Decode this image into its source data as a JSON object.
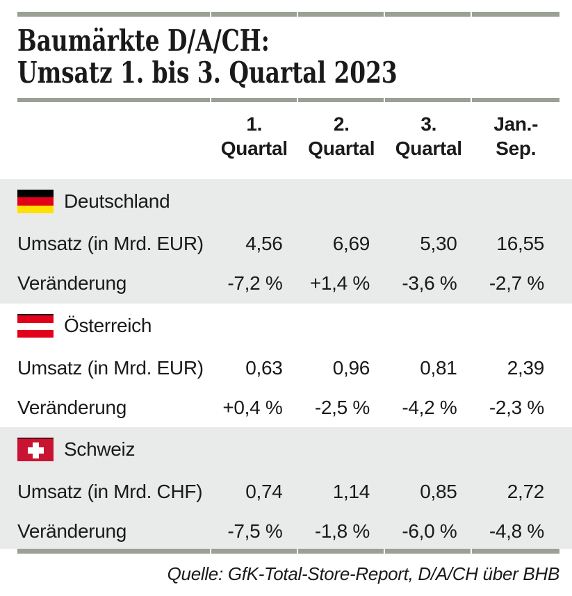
{
  "title": {
    "line1": "Baumärkte D/A/CH:",
    "line2": "Umsatz 1. bis 3. Quartal 2023"
  },
  "header": {
    "columns": [
      {
        "line1": "1.",
        "line2": "Quartal"
      },
      {
        "line1": "2.",
        "line2": "Quartal"
      },
      {
        "line1": "3.",
        "line2": "Quartal"
      },
      {
        "line1": "Jan.-",
        "line2": "Sep."
      }
    ]
  },
  "sections": [
    {
      "country": "Deutschland",
      "flag": "germany-flag",
      "rows": [
        {
          "label": "Umsatz (in Mrd. EUR)",
          "values": [
            "4,56",
            "6,69",
            "5,30",
            "16,55"
          ]
        },
        {
          "label": "Veränderung",
          "values": [
            "-7,2 %",
            "+1,4 %",
            "-3,6 %",
            "-2,7 %"
          ]
        }
      ]
    },
    {
      "country": "Österreich",
      "flag": "austria-flag",
      "rows": [
        {
          "label": "Umsatz (in Mrd. EUR)",
          "values": [
            "0,63",
            "0,96",
            "0,81",
            "2,39"
          ]
        },
        {
          "label": "Veränderung",
          "values": [
            "+0,4 %",
            "-2,5 %",
            "-4,2 %",
            "-2,3 %"
          ]
        }
      ]
    },
    {
      "country": "Schweiz",
      "flag": "switzerland-flag",
      "rows": [
        {
          "label": "Umsatz (in Mrd. CHF)",
          "values": [
            "0,74",
            "1,14",
            "0,85",
            "2,72"
          ]
        },
        {
          "label": "Veränderung",
          "values": [
            "-7,5 %",
            "-1,8 %",
            "-6,0 %",
            "-4,8 %"
          ]
        }
      ]
    }
  ],
  "source": "Quelle: GfK-Total-Store-Report, D/A/CH über BHB",
  "colors": {
    "separator_bar": "#9aa194",
    "shaded_section_bg": "#e9eaea",
    "text": "#1a1a1a",
    "germany_red": "#e2001a",
    "germany_gold": "#ffe000",
    "austria_red": "#e2001a",
    "switzerland_red": "#c81432"
  },
  "chart_data": {
    "type": "table",
    "title": "Baumärkte D/A/CH: Umsatz 1. bis 3. Quartal 2023",
    "columns": [
      "1. Quartal",
      "2. Quartal",
      "3. Quartal",
      "Jan.-Sep."
    ],
    "groups": [
      {
        "country": "Deutschland",
        "currency": "EUR",
        "umsatz_in_mrd": [
          4.56,
          6.69,
          5.3,
          16.55
        ],
        "veraenderung_pct": [
          -7.2,
          1.4,
          -3.6,
          -2.7
        ]
      },
      {
        "country": "Österreich",
        "currency": "EUR",
        "umsatz_in_mrd": [
          0.63,
          0.96,
          0.81,
          2.39
        ],
        "veraenderung_pct": [
          0.4,
          -2.5,
          -4.2,
          -2.3
        ]
      },
      {
        "country": "Schweiz",
        "currency": "CHF",
        "umsatz_in_mrd": [
          0.74,
          1.14,
          0.85,
          2.72
        ],
        "veraenderung_pct": [
          -7.5,
          -1.8,
          -6.0,
          -4.8
        ]
      }
    ],
    "source": "Quelle: GfK-Total-Store-Report, D/A/CH über BHB"
  }
}
